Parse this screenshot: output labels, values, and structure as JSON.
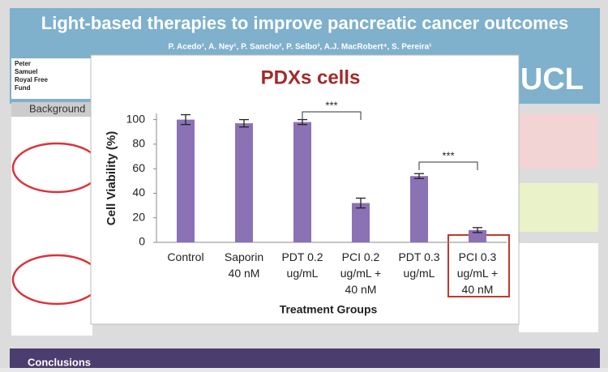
{
  "poster": {
    "title": "Light-based therapies to improve pancreatic cancer outcomes",
    "authors": "P. Acedo¹, A. Ney¹, P. Sancho², P. Selbo³, A.J. MacRobert⁴, S. Pereira¹",
    "logo": "UCL",
    "background_heading": "Background",
    "conclusions_heading": "Conclusions",
    "sidebar": [
      "Peter",
      "Samuel",
      "Royal Free",
      "Fund"
    ]
  },
  "chart_data": {
    "type": "bar",
    "title": "PDXs cells",
    "y_label": "Cell Viability (%)",
    "x_label": "Treatment Groups",
    "categories": [
      "Control",
      "Saporin\n40 nM",
      "PDT 0.2\nug/mL",
      "PCI 0.2\nug/mL +\n40  nM",
      "PDT 0.3\nug/mL",
      "PCI 0.3\nug/mL +\n40  nM"
    ],
    "values": [
      100,
      97,
      98,
      32,
      54,
      10
    ],
    "errors": [
      4,
      3,
      2,
      4,
      2,
      2
    ],
    "color": "#8a72b5",
    "ylim": [
      0,
      105
    ],
    "yticks": [
      0,
      20,
      40,
      60,
      80,
      100
    ],
    "annotations": [
      "***",
      "***"
    ]
  }
}
